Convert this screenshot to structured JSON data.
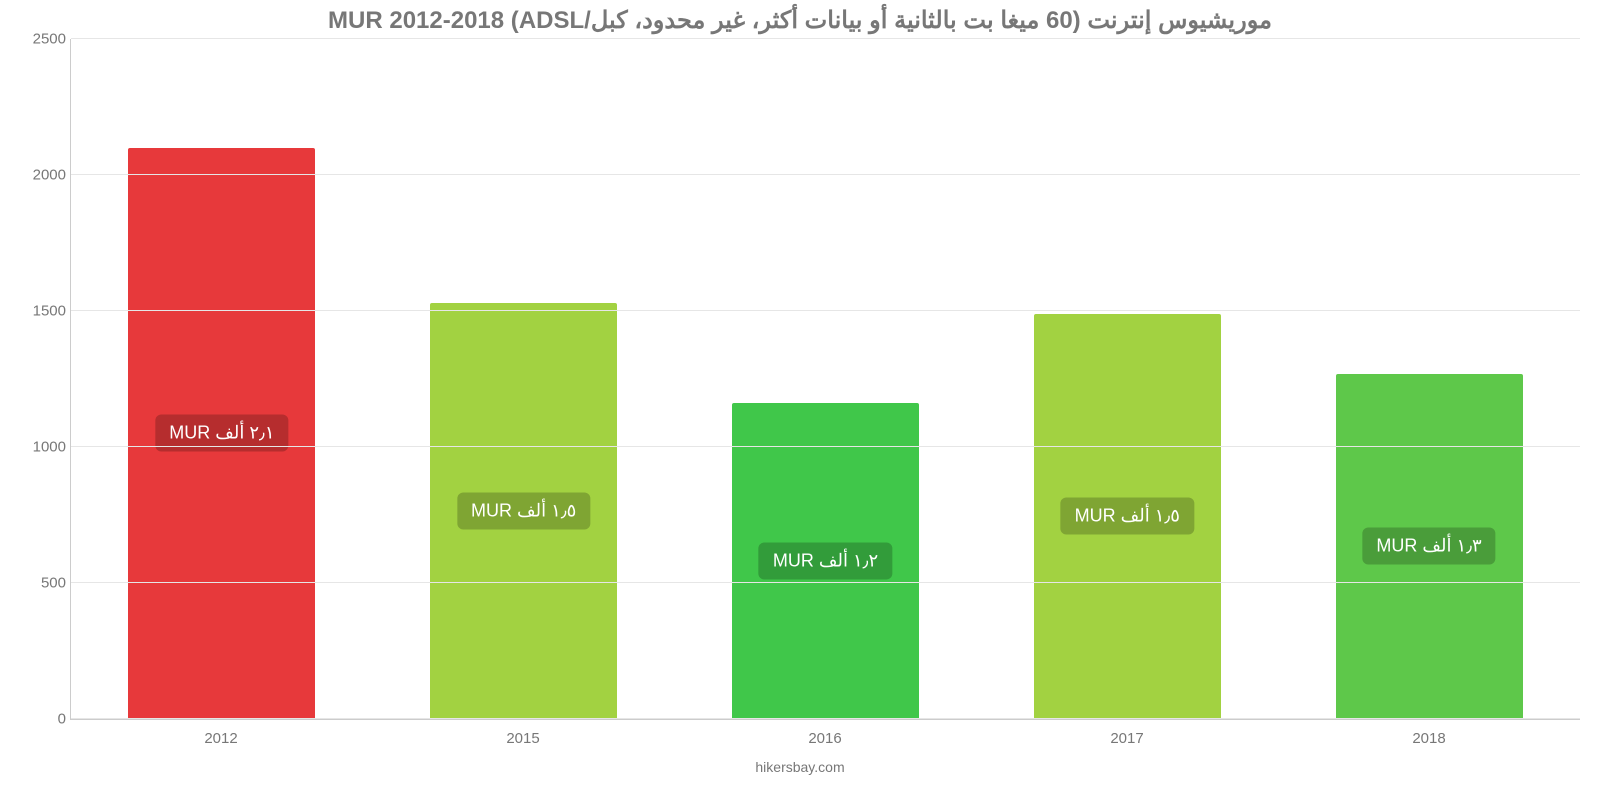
{
  "chart": {
    "type": "bar",
    "title": "موريشيوس إنترنت (60 ميغا بت بالثانية أو بيانات أكثر، غير محدود، كبل/ADSL) MUR 2012-2018",
    "title_color": "#777777",
    "title_fontsize": 24,
    "caption": "hikersbay.com",
    "caption_color": "#777777",
    "caption_fontsize": 14,
    "background_color": "#ffffff",
    "grid_color": "#e6e6e6",
    "axis_color": "#cccccc",
    "ylim_min": 0,
    "ylim_max": 2500,
    "ytick_step": 500,
    "yticks": [
      {
        "value": 0,
        "label": "0"
      },
      {
        "value": 500,
        "label": "500"
      },
      {
        "value": 1000,
        "label": "1000"
      },
      {
        "value": 1500,
        "label": "1500"
      },
      {
        "value": 2000,
        "label": "2000"
      },
      {
        "value": 2500,
        "label": "2500"
      }
    ],
    "x_label_color": "#777777",
    "y_label_color": "#777777",
    "label_fontsize": 15,
    "bar_width_pct": 62,
    "bar_label_fontsize": 18,
    "bar_label_text_color": "#ffffff",
    "bar_label_radius": 6,
    "bars": [
      {
        "category": "2012",
        "value": 2100,
        "fill_color": "#e7393b",
        "label_text": "٢٫١ ألف MUR",
        "label_bg": "#b62d2e"
      },
      {
        "category": "2015",
        "value": 1530,
        "fill_color": "#a2d241",
        "label_text": "١٫٥ ألف MUR",
        "label_bg": "#7fa533"
      },
      {
        "category": "2016",
        "value": 1160,
        "fill_color": "#40c74a",
        "label_text": "١٫٢ ألف MUR",
        "label_bg": "#329c3a"
      },
      {
        "category": "2017",
        "value": 1490,
        "fill_color": "#a2d241",
        "label_text": "١٫٥ ألف MUR",
        "label_bg": "#7fa533"
      },
      {
        "category": "2018",
        "value": 1270,
        "fill_color": "#5ec84a",
        "label_text": "١٫٣ ألف MUR",
        "label_bg": "#4a9d3a"
      }
    ]
  }
}
